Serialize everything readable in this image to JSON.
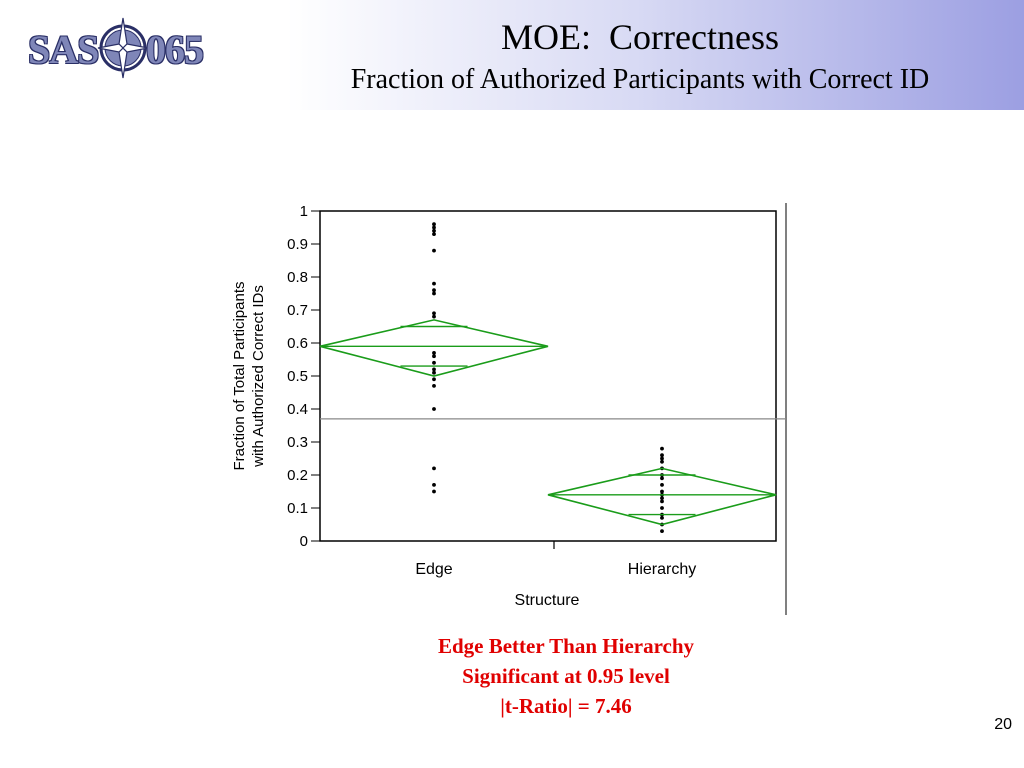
{
  "slide": {
    "logo_left": "SAS",
    "logo_right": "065",
    "title": "MOE:  Correctness",
    "subtitle": "Fraction of Authorized Participants with Correct ID",
    "notes": [
      "Edge Better Than Hierarchy",
      "Significant at 0.95 level",
      "|t-Ratio| = 7.46"
    ],
    "page_number": "20",
    "colors": {
      "diamond": "#1a9c1a",
      "note_text": "#e00000"
    }
  },
  "chart_data": {
    "type": "scatter",
    "xlabel": "Structure",
    "ylabel": "Fraction of Total Participants with Authorized Correct IDs",
    "ylabel_lines": [
      "Fraction of Total Participants",
      "with Authorized Correct IDs"
    ],
    "categories": [
      "Edge",
      "Hierarchy"
    ],
    "ylim": [
      0,
      1
    ],
    "yticks": [
      0,
      0.1,
      0.2,
      0.3,
      0.4,
      0.5,
      0.6,
      0.7,
      0.8,
      0.9,
      1
    ],
    "ytick_labels": [
      "0",
      "0.1",
      "0.2",
      "0.3",
      "0.4",
      "0.5",
      "0.6",
      "0.7",
      "0.8",
      "0.9",
      "1"
    ],
    "grand_mean": 0.37,
    "groups": [
      {
        "name": "Edge",
        "mean": 0.59,
        "ci_lower": 0.5,
        "ci_upper": 0.67,
        "overlap_lower": 0.53,
        "overlap_upper": 0.65,
        "points": [
          0.96,
          0.95,
          0.94,
          0.93,
          0.88,
          0.78,
          0.76,
          0.75,
          0.69,
          0.68,
          0.57,
          0.56,
          0.54,
          0.52,
          0.51,
          0.49,
          0.47,
          0.4,
          0.22,
          0.17,
          0.15
        ]
      },
      {
        "name": "Hierarchy",
        "mean": 0.14,
        "ci_lower": 0.05,
        "ci_upper": 0.22,
        "overlap_lower": 0.08,
        "overlap_upper": 0.2,
        "points": [
          0.28,
          0.26,
          0.25,
          0.24,
          0.22,
          0.2,
          0.19,
          0.17,
          0.15,
          0.14,
          0.13,
          0.12,
          0.1,
          0.08,
          0.07,
          0.05,
          0.03
        ]
      }
    ]
  }
}
